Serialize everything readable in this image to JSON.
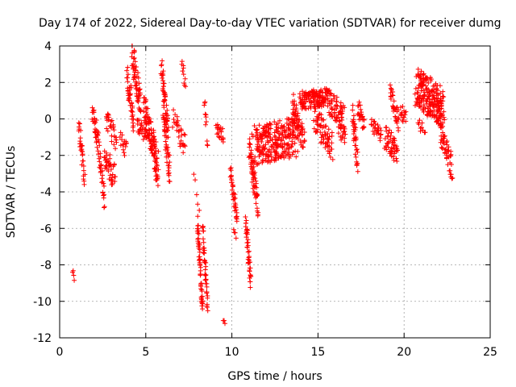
{
  "chart_data": {
    "type": "scatter",
    "title": "Day 174 of 2022, Sidereal Day-to-day VTEC variation (SDTVAR) for receiver dumg",
    "xlabel": "GPS time / hours",
    "ylabel": "SDTVAR / TECUs",
    "xlim": [
      0,
      25
    ],
    "ylim": [
      -12,
      4
    ],
    "xticks": [
      0,
      5,
      10,
      15,
      20,
      25
    ],
    "yticks": [
      -12,
      -10,
      -8,
      -6,
      -4,
      -2,
      0,
      2,
      4
    ],
    "grid": true,
    "marker": "+",
    "color": "#ff0000",
    "series": [
      {
        "name": "SDTVAR",
        "segments": [
          {
            "x_start": 0.75,
            "x_end": 0.85,
            "y_start": -8.3,
            "y_end": -8.9,
            "spread": 0.2,
            "count": 4
          },
          {
            "x_start": 1.1,
            "x_end": 1.45,
            "y_start": -0.4,
            "y_end": -3.4,
            "spread": 0.6,
            "count": 30
          },
          {
            "x_start": 1.9,
            "x_end": 2.3,
            "y_start": 0.3,
            "y_end": -1.5,
            "spread": 0.6,
            "count": 35
          },
          {
            "x_start": 2.3,
            "x_end": 2.6,
            "y_start": -2.0,
            "y_end": -4.5,
            "spread": 0.6,
            "count": 25
          },
          {
            "x_start": 2.6,
            "x_end": 3.2,
            "y_start": -2.2,
            "y_end": -3.2,
            "spread": 0.7,
            "count": 40
          },
          {
            "x_start": 2.7,
            "x_end": 3.3,
            "y_start": 0.0,
            "y_end": -1.2,
            "spread": 0.6,
            "count": 30
          },
          {
            "x_start": 3.5,
            "x_end": 3.9,
            "y_start": -1.0,
            "y_end": -1.8,
            "spread": 0.5,
            "count": 15
          },
          {
            "x_start": 3.9,
            "x_end": 4.3,
            "y_start": 2.5,
            "y_end": 0.0,
            "spread": 0.8,
            "count": 40
          },
          {
            "x_start": 4.2,
            "x_end": 4.7,
            "y_start": 3.6,
            "y_end": 1.0,
            "spread": 0.9,
            "count": 60
          },
          {
            "x_start": 4.5,
            "x_end": 5.0,
            "y_start": -0.3,
            "y_end": -0.9,
            "spread": 0.4,
            "count": 25
          },
          {
            "x_start": 4.9,
            "x_end": 5.7,
            "y_start": 0.5,
            "y_end": -2.5,
            "spread": 0.9,
            "count": 110
          },
          {
            "x_start": 5.5,
            "x_end": 5.7,
            "y_start": -2.8,
            "y_end": -3.4,
            "spread": 0.3,
            "count": 8
          },
          {
            "x_start": 5.9,
            "x_end": 6.3,
            "y_start": 2.8,
            "y_end": -0.5,
            "spread": 0.7,
            "count": 45
          },
          {
            "x_start": 6.0,
            "x_end": 6.4,
            "y_start": 0.5,
            "y_end": -3.0,
            "spread": 0.8,
            "count": 45
          },
          {
            "x_start": 6.6,
            "x_end": 7.3,
            "y_start": 0.0,
            "y_end": -1.5,
            "spread": 0.6,
            "count": 30
          },
          {
            "x_start": 7.1,
            "x_end": 7.3,
            "y_start": 3.2,
            "y_end": 1.8,
            "spread": 0.4,
            "count": 10
          },
          {
            "x_start": 7.8,
            "x_end": 8.1,
            "y_start": -2.8,
            "y_end": -5.0,
            "spread": 0.3,
            "count": 5
          },
          {
            "x_start": 8.0,
            "x_end": 8.3,
            "y_start": -5.5,
            "y_end": -10.5,
            "spread": 0.6,
            "count": 55
          },
          {
            "x_start": 8.3,
            "x_end": 8.6,
            "y_start": -6.0,
            "y_end": -10.2,
            "spread": 0.6,
            "count": 40
          },
          {
            "x_start": 8.4,
            "x_end": 8.6,
            "y_start": 1.0,
            "y_end": -1.5,
            "spread": 0.5,
            "count": 12
          },
          {
            "x_start": 9.1,
            "x_end": 9.5,
            "y_start": -0.5,
            "y_end": -1.0,
            "spread": 0.4,
            "count": 20
          },
          {
            "x_start": 9.5,
            "x_end": 9.6,
            "y_start": -10.9,
            "y_end": -11.4,
            "spread": 0.2,
            "count": 3
          },
          {
            "x_start": 9.9,
            "x_end": 10.3,
            "y_start": -3.0,
            "y_end": -5.5,
            "spread": 0.5,
            "count": 35
          },
          {
            "x_start": 10.1,
            "x_end": 10.25,
            "y_start": -6.0,
            "y_end": -6.5,
            "spread": 0.2,
            "count": 4
          },
          {
            "x_start": 10.8,
            "x_end": 11.1,
            "y_start": -5.5,
            "y_end": -9.0,
            "spread": 0.6,
            "count": 40
          },
          {
            "x_start": 11.0,
            "x_end": 11.5,
            "y_start": -1.5,
            "y_end": -4.8,
            "spread": 0.7,
            "count": 60
          },
          {
            "x_start": 11.3,
            "x_end": 13.8,
            "y_start": -1.5,
            "y_end": -1.0,
            "spread": 1.1,
            "count": 260
          },
          {
            "x_start": 13.5,
            "x_end": 14.2,
            "y_start": 0.8,
            "y_end": -1.2,
            "spread": 0.7,
            "count": 60
          },
          {
            "x_start": 14.0,
            "x_end": 15.6,
            "y_start": 1.0,
            "y_end": 1.2,
            "spread": 0.5,
            "count": 140
          },
          {
            "x_start": 14.8,
            "x_end": 15.8,
            "y_start": 0.0,
            "y_end": -1.5,
            "spread": 0.8,
            "count": 70
          },
          {
            "x_start": 15.6,
            "x_end": 16.5,
            "y_start": 1.0,
            "y_end": 0.0,
            "spread": 0.7,
            "count": 60
          },
          {
            "x_start": 16.2,
            "x_end": 16.6,
            "y_start": -0.5,
            "y_end": -1.0,
            "spread": 0.5,
            "count": 20
          },
          {
            "x_start": 17.0,
            "x_end": 17.3,
            "y_start": 0.5,
            "y_end": -2.5,
            "spread": 0.8,
            "count": 35
          },
          {
            "x_start": 17.3,
            "x_end": 17.7,
            "y_start": 0.8,
            "y_end": -0.5,
            "spread": 0.6,
            "count": 25
          },
          {
            "x_start": 18.1,
            "x_end": 18.7,
            "y_start": -0.4,
            "y_end": -0.9,
            "spread": 0.4,
            "count": 25
          },
          {
            "x_start": 18.9,
            "x_end": 19.6,
            "y_start": -1.0,
            "y_end": -1.8,
            "spread": 0.7,
            "count": 50
          },
          {
            "x_start": 19.2,
            "x_end": 19.7,
            "y_start": 1.5,
            "y_end": -0.2,
            "spread": 0.6,
            "count": 35
          },
          {
            "x_start": 19.8,
            "x_end": 20.1,
            "y_start": 0.5,
            "y_end": 0.0,
            "spread": 0.4,
            "count": 15
          },
          {
            "x_start": 20.7,
            "x_end": 22.3,
            "y_start": 1.8,
            "y_end": 0.5,
            "spread": 1.1,
            "count": 220
          },
          {
            "x_start": 20.8,
            "x_end": 21.2,
            "y_start": -0.2,
            "y_end": -0.6,
            "spread": 0.3,
            "count": 10
          },
          {
            "x_start": 22.1,
            "x_end": 22.8,
            "y_start": -0.6,
            "y_end": -2.8,
            "spread": 0.7,
            "count": 50
          }
        ]
      }
    ]
  }
}
